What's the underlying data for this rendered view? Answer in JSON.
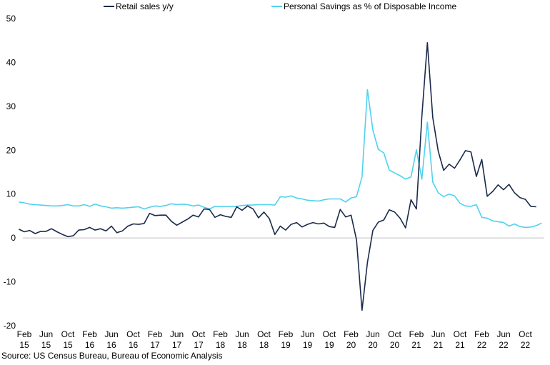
{
  "chart_data": {
    "type": "line",
    "title": "",
    "xlabel": "",
    "ylabel": "",
    "ylim": [
      -20,
      50
    ],
    "yticks": [
      -20,
      -10,
      0,
      10,
      20,
      30,
      40,
      50
    ],
    "x_tick_labels": [
      [
        "Feb",
        "15"
      ],
      [
        "Jun",
        "15"
      ],
      [
        "Oct",
        "15"
      ],
      [
        "Feb",
        "16"
      ],
      [
        "Jun",
        "16"
      ],
      [
        "Oct",
        "16"
      ],
      [
        "Feb",
        "17"
      ],
      [
        "Jun",
        "17"
      ],
      [
        "Oct",
        "17"
      ],
      [
        "Feb",
        "18"
      ],
      [
        "Jun",
        "18"
      ],
      [
        "Oct",
        "18"
      ],
      [
        "Feb",
        "19"
      ],
      [
        "Jun",
        "19"
      ],
      [
        "Oct",
        "19"
      ],
      [
        "Feb",
        "20"
      ],
      [
        "Jun",
        "20"
      ],
      [
        "Oct",
        "20"
      ],
      [
        "Feb",
        "21"
      ],
      [
        "Jun",
        "21"
      ],
      [
        "Oct",
        "21"
      ],
      [
        "Feb",
        "22"
      ],
      [
        "Jun",
        "22"
      ],
      [
        "Oct",
        "22"
      ]
    ],
    "x_start": "2015-01",
    "grid": false,
    "legend_position": "top",
    "colors": {
      "retail": "#1b2a4a",
      "savings": "#4fd2ee",
      "axis": "#bfbfbf"
    },
    "series": [
      {
        "name": "Retail sales y/y",
        "color": "#1b2a4a",
        "values": [
          2.0,
          1.4,
          1.7,
          1.0,
          1.5,
          1.5,
          2.1,
          1.4,
          0.8,
          0.3,
          0.5,
          1.8,
          1.9,
          2.4,
          1.8,
          2.1,
          1.6,
          2.7,
          1.2,
          1.6,
          2.7,
          3.2,
          3.1,
          3.3,
          5.6,
          5.1,
          5.2,
          5.2,
          3.8,
          2.9,
          3.6,
          4.3,
          5.2,
          4.8,
          6.6,
          6.5,
          4.7,
          5.3,
          4.9,
          4.7,
          7.1,
          6.3,
          7.3,
          6.6,
          4.6,
          5.9,
          4.4,
          0.8,
          2.7,
          1.8,
          3.1,
          3.5,
          2.5,
          3.1,
          3.5,
          3.2,
          3.4,
          2.6,
          2.4,
          6.5,
          4.8,
          5.2,
          -0.4,
          -16.5,
          -5.6,
          1.7,
          3.6,
          4.1,
          6.4,
          5.9,
          4.5,
          2.3,
          8.7,
          6.6,
          27.7,
          44.5,
          27.4,
          19.8,
          15.4,
          16.8,
          15.9,
          17.8,
          19.9,
          19.6,
          14.0,
          17.9,
          9.5,
          10.6,
          12.1,
          11.0,
          12.2,
          10.3,
          9.2,
          8.8,
          7.2,
          7.1
        ]
      },
      {
        "name": "Personal Savings as % of Disposable Income",
        "color": "#4fd2ee",
        "values": [
          8.2,
          8.0,
          7.7,
          7.6,
          7.5,
          7.4,
          7.3,
          7.3,
          7.4,
          7.6,
          7.3,
          7.3,
          7.6,
          7.2,
          7.7,
          7.3,
          7.1,
          6.8,
          6.9,
          6.8,
          6.9,
          7.0,
          7.1,
          6.6,
          7.0,
          7.3,
          7.2,
          7.4,
          7.8,
          7.6,
          7.7,
          7.6,
          7.3,
          7.5,
          7.0,
          6.6,
          7.2,
          7.2,
          7.2,
          7.2,
          7.2,
          7.4,
          7.5,
          7.5,
          7.6,
          7.6,
          7.6,
          7.5,
          9.4,
          9.3,
          9.6,
          9.1,
          8.9,
          8.6,
          8.5,
          8.4,
          8.7,
          8.9,
          8.9,
          8.9,
          8.2,
          9.1,
          9.4,
          13.9,
          33.8,
          24.6,
          20.2,
          19.4,
          15.5,
          14.8,
          14.2,
          13.4,
          13.9,
          20.1,
          13.4,
          26.4,
          12.7,
          10.3,
          9.4,
          10.0,
          9.6,
          7.9,
          7.3,
          7.2,
          7.6,
          4.7,
          4.5,
          3.9,
          3.7,
          3.5,
          2.7,
          3.2,
          2.6,
          2.4,
          2.5,
          2.8,
          3.4
        ]
      }
    ]
  },
  "source_text": "Source: US Census Bureau, Bureau of Economic Analysis"
}
